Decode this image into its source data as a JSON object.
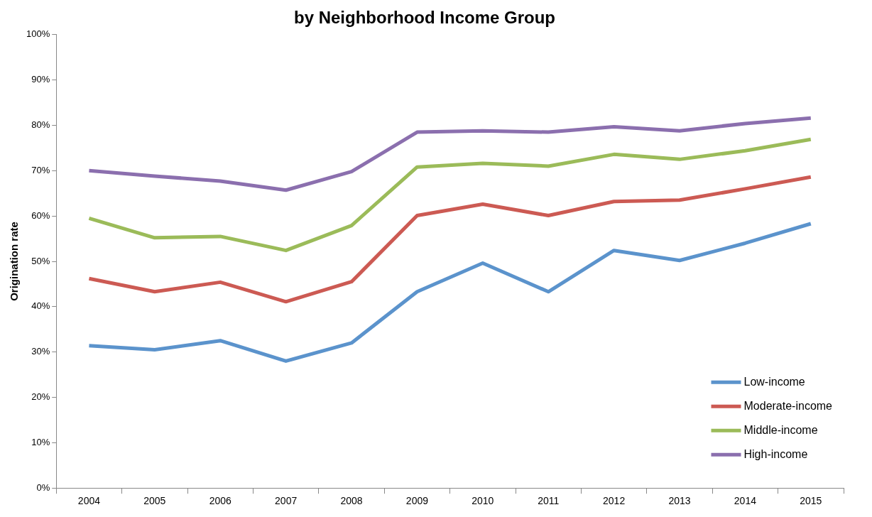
{
  "chart_data": {
    "type": "line",
    "title": "by Neighborhood Income Group",
    "ylabel": "Origination rate",
    "categories": [
      "2004",
      "2005",
      "2006",
      "2007",
      "2008",
      "2009",
      "2010",
      "2011",
      "2012",
      "2013",
      "2014",
      "2015"
    ],
    "series": [
      {
        "name": "Low-income",
        "color": "#5b93cc",
        "values": [
          31.4,
          30.5,
          32.5,
          28.0,
          32.0,
          43.3,
          49.6,
          43.3,
          52.4,
          50.2,
          54.0,
          58.3
        ]
      },
      {
        "name": "Moderate-income",
        "color": "#cc5a53",
        "values": [
          46.2,
          43.3,
          45.4,
          41.1,
          45.5,
          60.1,
          62.6,
          60.1,
          63.2,
          63.5,
          66.0,
          68.6
        ]
      },
      {
        "name": "Middle-income",
        "color": "#9bbb59",
        "values": [
          59.5,
          55.2,
          55.5,
          52.4,
          57.9,
          70.8,
          71.6,
          71.0,
          73.6,
          72.5,
          74.4,
          76.9
        ]
      },
      {
        "name": "High-income",
        "color": "#8b6fae",
        "values": [
          70.0,
          68.8,
          67.7,
          65.7,
          69.8,
          78.5,
          78.8,
          78.5,
          79.7,
          78.8,
          80.4,
          81.6
        ]
      }
    ],
    "ylim": [
      0,
      100
    ],
    "yticks": [
      {
        "value": 0,
        "label": "0%"
      },
      {
        "value": 10,
        "label": "10%"
      },
      {
        "value": 20,
        "label": "20%"
      },
      {
        "value": 30,
        "label": "30%"
      },
      {
        "value": 40,
        "label": "40%"
      },
      {
        "value": 50,
        "label": "50%"
      },
      {
        "value": 60,
        "label": "60%"
      },
      {
        "value": 70,
        "label": "70%"
      },
      {
        "value": 80,
        "label": "80%"
      },
      {
        "value": 90,
        "label": "90%"
      },
      {
        "value": 100,
        "label": "100%"
      }
    ],
    "grid": false,
    "legend": "bottom right",
    "marker": "none",
    "line_style": "solid"
  }
}
